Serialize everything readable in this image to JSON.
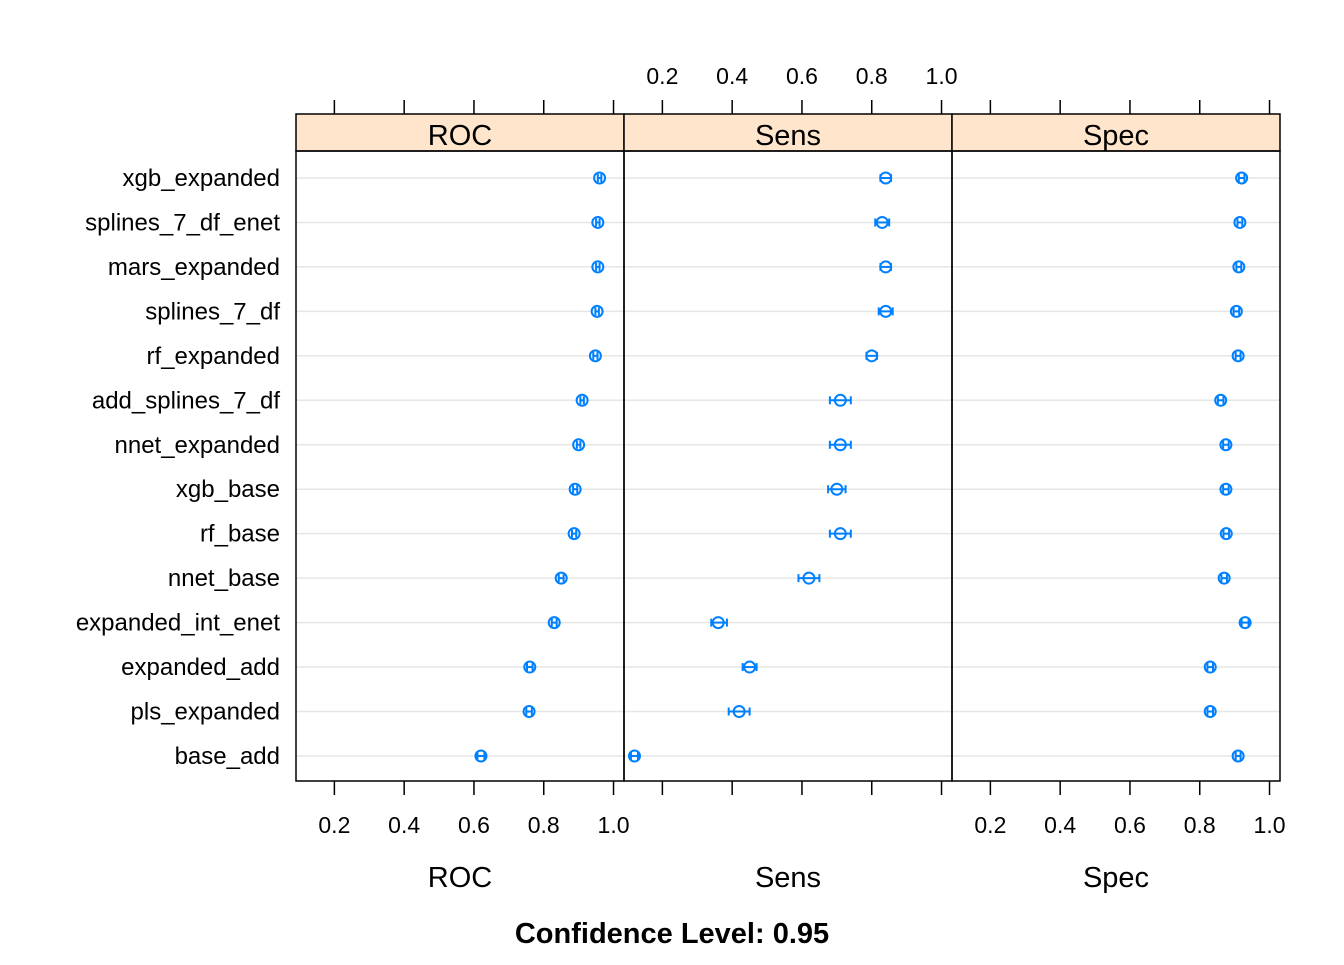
{
  "chart_data": {
    "type": "dotplot",
    "caption": "Confidence Level: 0.95",
    "categories": [
      "xgb_expanded",
      "splines_7_df_enet",
      "mars_expanded",
      "splines_7_df",
      "rf_expanded",
      "add_splines_7_df",
      "nnet_expanded",
      "xgb_base",
      "rf_base",
      "nnet_base",
      "expanded_int_enet",
      "expanded_add",
      "pls_expanded",
      "base_add"
    ],
    "xlim": [
      0.09,
      1.03
    ],
    "ticks": [
      0.2,
      0.4,
      0.6,
      0.8,
      1.0
    ],
    "tick_labels": [
      "0.2",
      "0.4",
      "0.6",
      "0.8",
      "1.0"
    ],
    "grid": "horizontal",
    "colors": {
      "strip": "#ffe5cc",
      "point": "#0080ff",
      "grid": "#e6e6e6"
    },
    "panels": [
      {
        "name": "ROC",
        "xlabel": "ROC",
        "ticks_top": false,
        "estimate": [
          0.96,
          0.955,
          0.955,
          0.953,
          0.948,
          0.91,
          0.9,
          0.89,
          0.887,
          0.85,
          0.83,
          0.76,
          0.758,
          0.62
        ],
        "lower": [
          0.955,
          0.95,
          0.95,
          0.948,
          0.942,
          0.905,
          0.895,
          0.884,
          0.881,
          0.843,
          0.823,
          0.752,
          0.75,
          0.61
        ],
        "upper": [
          0.965,
          0.96,
          0.96,
          0.958,
          0.954,
          0.915,
          0.905,
          0.896,
          0.893,
          0.857,
          0.837,
          0.768,
          0.766,
          0.63
        ]
      },
      {
        "name": "Sens",
        "xlabel": "Sens",
        "ticks_top": true,
        "estimate": [
          0.84,
          0.83,
          0.84,
          0.84,
          0.8,
          0.71,
          0.71,
          0.7,
          0.71,
          0.62,
          0.36,
          0.45,
          0.42,
          0.12
        ],
        "lower": [
          0.825,
          0.81,
          0.825,
          0.82,
          0.785,
          0.68,
          0.68,
          0.675,
          0.68,
          0.59,
          0.34,
          0.43,
          0.39,
          0.11
        ],
        "upper": [
          0.855,
          0.85,
          0.855,
          0.86,
          0.815,
          0.74,
          0.74,
          0.725,
          0.74,
          0.65,
          0.385,
          0.47,
          0.45,
          0.13
        ]
      },
      {
        "name": "Spec",
        "xlabel": "Spec",
        "ticks_top": false,
        "estimate": [
          0.92,
          0.915,
          0.912,
          0.905,
          0.91,
          0.86,
          0.875,
          0.875,
          0.876,
          0.87,
          0.93,
          0.83,
          0.83,
          0.91
        ],
        "lower": [
          0.912,
          0.908,
          0.905,
          0.897,
          0.903,
          0.852,
          0.867,
          0.867,
          0.868,
          0.862,
          0.92,
          0.822,
          0.822,
          0.903
        ],
        "upper": [
          0.928,
          0.922,
          0.919,
          0.913,
          0.917,
          0.868,
          0.883,
          0.883,
          0.884,
          0.878,
          0.94,
          0.838,
          0.838,
          0.917
        ]
      }
    ]
  }
}
